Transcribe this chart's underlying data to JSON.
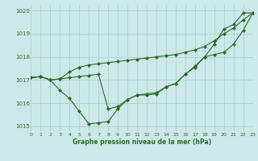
{
  "series": [
    {
      "x": [
        0,
        1,
        2,
        3,
        4,
        5,
        6,
        7,
        8,
        9,
        10,
        11,
        12,
        13,
        14,
        15,
        16,
        17,
        18,
        19,
        20,
        21,
        22,
        23
      ],
      "y": [
        1017.1,
        1017.15,
        1017.0,
        1016.55,
        1016.2,
        1015.65,
        1015.1,
        1015.15,
        1015.2,
        1015.75,
        1016.15,
        1016.35,
        1016.35,
        1016.4,
        1016.7,
        1016.85,
        1017.25,
        1017.6,
        1018.0,
        1018.55,
        1019.2,
        1019.4,
        1019.9,
        1019.9
      ]
    },
    {
      "x": [
        0,
        1,
        2,
        3,
        4,
        5,
        6,
        7,
        8,
        9,
        10,
        11,
        12,
        13,
        14,
        15,
        16,
        17,
        18,
        19,
        20,
        21,
        22,
        23
      ],
      "y": [
        1017.1,
        1017.15,
        1017.0,
        1017.05,
        1017.35,
        1017.55,
        1017.65,
        1017.7,
        1017.75,
        1017.8,
        1017.85,
        1017.9,
        1017.95,
        1018.0,
        1018.05,
        1018.1,
        1018.2,
        1018.3,
        1018.45,
        1018.7,
        1019.0,
        1019.25,
        1019.6,
        1019.9
      ]
    },
    {
      "x": [
        0,
        1,
        2,
        3,
        4,
        5,
        6,
        7,
        8,
        9,
        10,
        11,
        12,
        13,
        14,
        15,
        16,
        17,
        18,
        19,
        20,
        21,
        22,
        23
      ],
      "y": [
        1017.1,
        1017.15,
        1017.0,
        1017.05,
        1017.1,
        1017.15,
        1017.2,
        1017.25,
        1015.75,
        1015.85,
        1016.15,
        1016.35,
        1016.4,
        1016.45,
        1016.7,
        1016.85,
        1017.25,
        1017.55,
        1018.0,
        1018.1,
        1018.2,
        1018.55,
        1019.15,
        1019.9
      ]
    }
  ],
  "xlim": [
    0,
    23
  ],
  "ylim": [
    1014.75,
    1020.25
  ],
  "yticks": [
    1015,
    1016,
    1017,
    1018,
    1019,
    1020
  ],
  "xticks": [
    0,
    1,
    2,
    3,
    4,
    5,
    6,
    7,
    8,
    9,
    10,
    11,
    12,
    13,
    14,
    15,
    16,
    17,
    18,
    19,
    20,
    21,
    22,
    23
  ],
  "xlabel": "Graphe pression niveau de la mer (hPa)",
  "background_color": "#cce8e8",
  "grid_color": "#aacccc",
  "line_color": "#2d6a2d",
  "tick_label_color": "#2d6a2d",
  "xlabel_color": "#2d6a2d",
  "marker": "D",
  "markersize": 2.0,
  "linewidth": 0.8
}
